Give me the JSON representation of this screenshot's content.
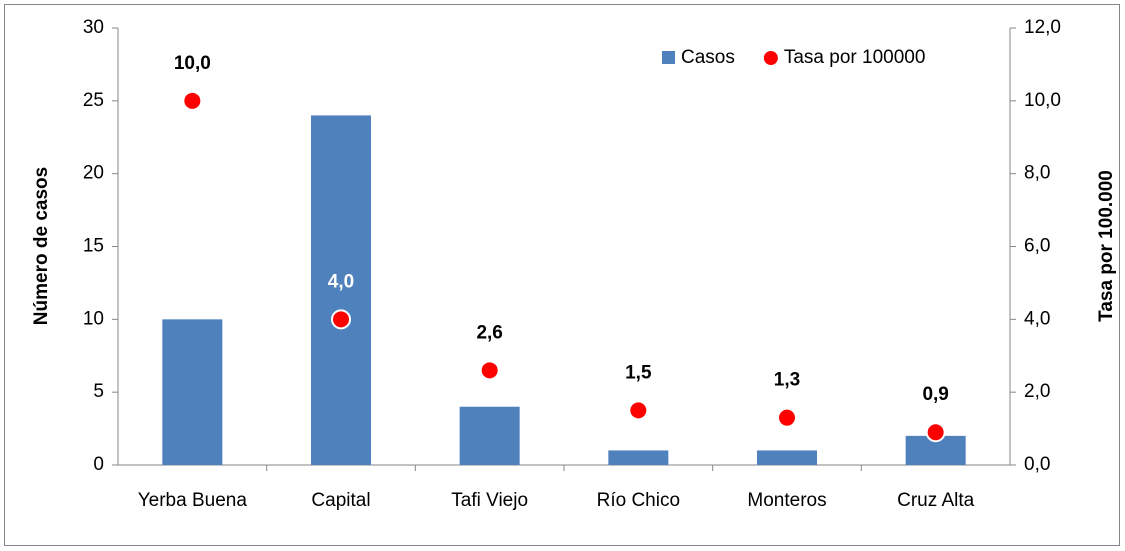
{
  "chart_data": {
    "type": "bar",
    "categories": [
      "Yerba Buena",
      "Capital",
      "Tafi Viejo",
      "Río Chico",
      "Monteros",
      "Cruz Alta"
    ],
    "series": [
      {
        "name": "Casos",
        "type": "bar",
        "color": "#4f81bd",
        "values": [
          10,
          24,
          4,
          1,
          1,
          2
        ]
      },
      {
        "name": "Tasa por 100000",
        "type": "scatter",
        "axis": "y2",
        "color": "#ff0000",
        "values": [
          10.0,
          4.0,
          2.6,
          1.5,
          1.3,
          0.9
        ],
        "value_labels": [
          "10,0",
          "4,0",
          "2,6",
          "1,5",
          "1,3",
          "0,9"
        ]
      }
    ],
    "ylabel": "Número de casos",
    "y2label": "Tasa por 100.000",
    "ylim": [
      0,
      30
    ],
    "yticks": [
      0,
      5,
      10,
      15,
      20,
      25,
      30
    ],
    "y2lim": [
      0,
      12
    ],
    "y2ticks": [
      {
        "value": 0,
        "label": "0,0"
      },
      {
        "value": 2,
        "label": "2,0"
      },
      {
        "value": 4,
        "label": "4,0"
      },
      {
        "value": 6,
        "label": "6,0"
      },
      {
        "value": 8,
        "label": "8,0"
      },
      {
        "value": 10,
        "label": "10,0"
      },
      {
        "value": 12,
        "label": "12,0"
      }
    ],
    "grid": false,
    "legend": "upper right"
  }
}
